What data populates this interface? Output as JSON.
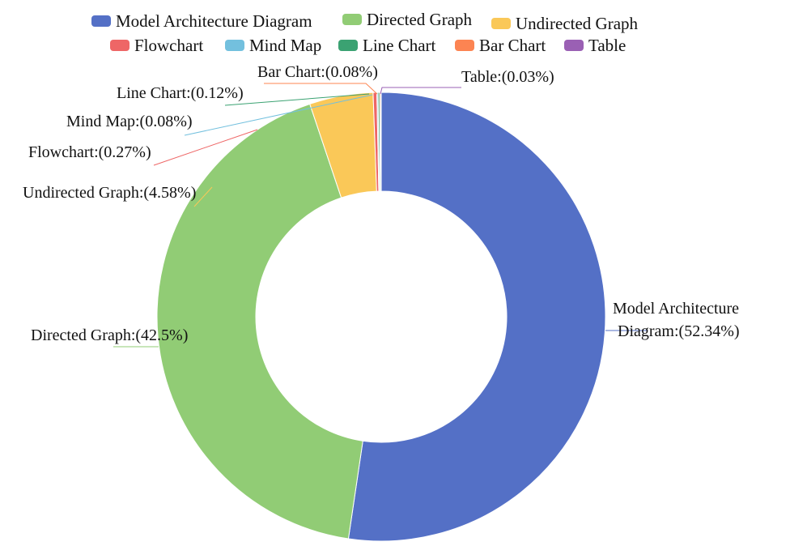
{
  "chart_data": {
    "type": "pie",
    "variant": "donut",
    "title": "",
    "categories": [
      "Model Architecture Diagram",
      "Directed Graph",
      "Undirected Graph",
      "Flowchart",
      "Mind Map",
      "Line Chart",
      "Bar Chart",
      "Table"
    ],
    "values": [
      52.34,
      42.5,
      4.58,
      0.27,
      0.08,
      0.12,
      0.08,
      0.03
    ],
    "colors": [
      "#5470c6",
      "#91cc75",
      "#fac858",
      "#ee6666",
      "#73c0de",
      "#3ba272",
      "#fc8452",
      "#9a60b4"
    ],
    "legend_position": "top",
    "slice_labels": [
      [
        "Model Architecture",
        "Diagram:(52.34%)"
      ],
      [
        "Directed Graph:(42.5%)"
      ],
      [
        "Undirected Graph:(4.58%)"
      ],
      [
        "Flowchart:(0.27%)"
      ],
      [
        "Mind Map:(0.08%)"
      ],
      [
        "Line Chart:(0.12%)"
      ],
      [
        "Bar Chart:(0.08%)"
      ],
      [
        "Table:(0.03%)"
      ]
    ]
  }
}
